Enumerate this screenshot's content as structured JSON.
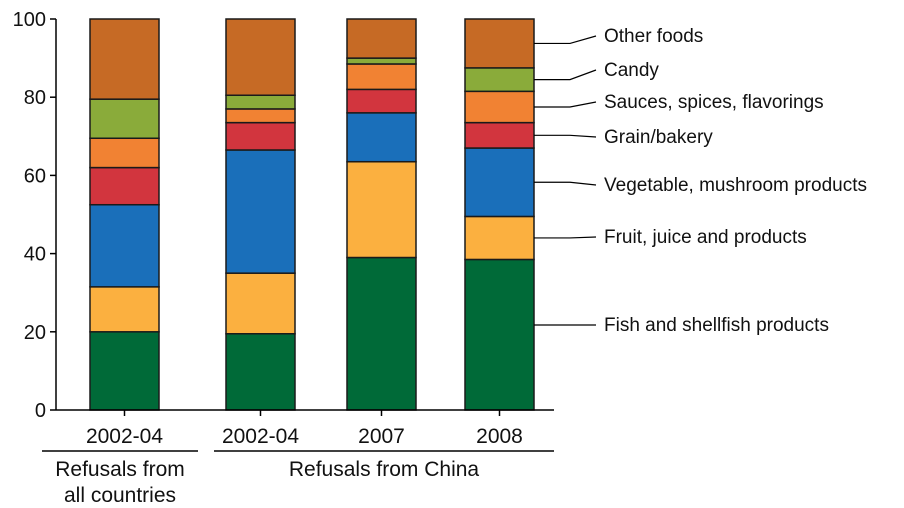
{
  "chart_data": {
    "type": "bar",
    "stacked": true,
    "categories": [
      "2002-04",
      "2002-04",
      "2007",
      "2008"
    ],
    "groups": [
      {
        "label_lines": [
          "Refusals from",
          "all countries"
        ],
        "categories": [
          0
        ]
      },
      {
        "label_lines": [
          "Refusals from China"
        ],
        "categories": [
          1,
          2,
          3
        ]
      }
    ],
    "series": [
      {
        "name": "Fish and shellfish products",
        "color": "#006a38",
        "values": [
          20,
          19.5,
          39,
          38.5
        ]
      },
      {
        "name": "Fruit, juice and products",
        "color": "#fbb040",
        "values": [
          11.5,
          15.5,
          24.5,
          11
        ]
      },
      {
        "name": "Vegetable, mushroom products",
        "color": "#1a6fba",
        "values": [
          21,
          31.5,
          12.5,
          17.5
        ]
      },
      {
        "name": "Grain/bakery",
        "color": "#d2353e",
        "values": [
          9.5,
          7,
          6,
          6.5
        ]
      },
      {
        "name": "Sauces, spices, flavorings",
        "color": "#f18233",
        "values": [
          7.5,
          3.5,
          6.5,
          8
        ]
      },
      {
        "name": "Candy",
        "color": "#8aab3a",
        "values": [
          10,
          3.5,
          1.5,
          6
        ]
      },
      {
        "name": "Other foods",
        "color": "#c66a25",
        "values": [
          20.5,
          19.5,
          10,
          12.5
        ]
      }
    ],
    "ylim": [
      0,
      100
    ],
    "yticks": [
      0,
      20,
      40,
      60,
      80,
      100
    ],
    "title": "",
    "xlabel": "",
    "ylabel": "",
    "grid": false,
    "legend": "right, leader lines to last bar"
  }
}
